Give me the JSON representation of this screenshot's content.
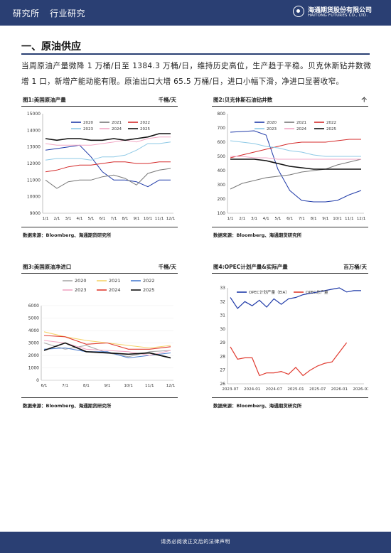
{
  "header": {
    "tab1": "研究所",
    "tab2": "行业研究",
    "logo_cn": "海通期货股份有限公司",
    "logo_en": "HAITONG FUTURES CO., LTD."
  },
  "section": {
    "title": "一、原油供应",
    "paragraph": "当周原油产量微降 1 万桶/日至 1384.3 万桶/日，维持历史高位，生产趋于平稳。贝克休斯钻井数微增 1 口，新增产能动能有限。原油出口大增 65.5 万桶/日，进口小幅下滑，净进口显著收窄。"
  },
  "figures": [
    {
      "title": "图1:美国原油产量",
      "unit": "千桶/天",
      "source": "数据来源：Bloomberg、海通期货研究所"
    },
    {
      "title": "图2:贝克休斯石油钻井数",
      "unit": "个",
      "source": "数据来源：Bloomberg、海通期货研究所"
    },
    {
      "title": "图3:美国原油净进口",
      "unit": "千桶/天",
      "source": "数据来源：Bloomberg、海通期货研究所"
    },
    {
      "title": "图4:OPEC计划产量&实际产量",
      "unit": "百万桶/天",
      "source": "数据来源：Bloomberg、海通期货研究所"
    }
  ],
  "footer": {
    "text": "请务必阅读正文后的法律声明"
  },
  "chart_data": [
    {
      "type": "line",
      "title": "图1:美国原油产量",
      "ylim": [
        9000,
        15000
      ],
      "yticks": [
        9000,
        10000,
        11000,
        12000,
        13000,
        14000,
        15000
      ],
      "xticks": [
        "1/1",
        "2/1",
        "3/1",
        "4/1",
        "5/1",
        "6/1",
        "7/1",
        "8/1",
        "9/1",
        "10/1",
        "11/1",
        "12/1"
      ],
      "series": [
        {
          "name": "2020",
          "color": "#1f3aa8",
          "values": [
            12800,
            12900,
            13000,
            13100,
            12400,
            11500,
            11000,
            11000,
            10900,
            10600,
            11000,
            11000
          ]
        },
        {
          "name": "2021",
          "color": "#777777",
          "values": [
            11000,
            10500,
            10900,
            11000,
            11000,
            11200,
            11300,
            11100,
            10700,
            11400,
            11600,
            11700
          ]
        },
        {
          "name": "2022",
          "color": "#d42a2a",
          "values": [
            11500,
            11600,
            11800,
            11900,
            11900,
            12000,
            12100,
            12100,
            12000,
            12000,
            12100,
            12100
          ]
        },
        {
          "name": "2023",
          "color": "#8ec9e6",
          "values": [
            12200,
            12300,
            12300,
            12300,
            12200,
            12400,
            12400,
            12500,
            12800,
            13200,
            13200,
            13300
          ]
        },
        {
          "name": "2024",
          "color": "#f2a6c4",
          "values": [
            13200,
            13100,
            13100,
            13100,
            13100,
            13200,
            13300,
            13400,
            13300,
            13500,
            13600,
            13600
          ]
        },
        {
          "name": "2025",
          "color": "#111111",
          "values": [
            13500,
            13400,
            13500,
            13500,
            13400,
            13400,
            13500,
            13400,
            13500,
            13600,
            13800,
            13800
          ]
        }
      ]
    },
    {
      "type": "line",
      "title": "图2:贝克休斯石油钻井数",
      "ylim": [
        100,
        800
      ],
      "yticks": [
        100,
        200,
        300,
        400,
        500,
        600,
        700,
        800
      ],
      "xticks": [
        "1/1",
        "2/1",
        "3/1",
        "4/1",
        "5/1",
        "6/1",
        "7/1",
        "8/1",
        "9/1",
        "10/1",
        "11/1",
        "12/1"
      ],
      "series": [
        {
          "name": "2020",
          "color": "#1f3aa8",
          "values": [
            670,
            675,
            680,
            650,
            410,
            260,
            190,
            180,
            180,
            190,
            230,
            260
          ]
        },
        {
          "name": "2021",
          "color": "#777777",
          "values": [
            270,
            310,
            330,
            350,
            360,
            370,
            390,
            400,
            410,
            440,
            460,
            480
          ]
        },
        {
          "name": "2022",
          "color": "#d42a2a",
          "values": [
            490,
            510,
            530,
            550,
            570,
            590,
            600,
            600,
            600,
            610,
            620,
            620
          ]
        },
        {
          "name": "2023",
          "color": "#8ec9e6",
          "values": [
            610,
            600,
            590,
            570,
            560,
            540,
            530,
            510,
            500,
            500,
            500,
            500
          ]
        },
        {
          "name": "2024",
          "color": "#f2a6c4",
          "values": [
            500,
            500,
            490,
            490,
            480,
            480,
            480,
            480,
            480,
            480,
            480,
            480
          ]
        },
        {
          "name": "2025",
          "color": "#111111",
          "values": [
            480,
            480,
            480,
            470,
            450,
            430,
            420,
            410,
            410,
            410,
            410,
            410
          ]
        }
      ]
    },
    {
      "type": "line",
      "title": "图3:美国原油净进口",
      "ylim": [
        0,
        6000
      ],
      "yticks": [
        0,
        1000,
        2000,
        3000,
        4000,
        5000,
        6000
      ],
      "xticks": [
        "6/1",
        "7/1",
        "8/1",
        "9/1",
        "10/1",
        "11/1",
        "12/1"
      ],
      "series": [
        {
          "name": "2020",
          "color": "#aaaaaa",
          "values": [
            3000,
            2500,
            2800,
            2200,
            1900,
            2300,
            2400
          ]
        },
        {
          "name": "2021",
          "color": "#f5d36b",
          "values": [
            3900,
            3500,
            3200,
            3000,
            2800,
            2600,
            2800
          ]
        },
        {
          "name": "2022",
          "color": "#4d7fd0",
          "values": [
            2500,
            2600,
            2300,
            2300,
            1800,
            2000,
            2200
          ]
        },
        {
          "name": "2023",
          "color": "#f2a6c4",
          "values": [
            3200,
            3000,
            2500,
            2400,
            2300,
            2000,
            2400
          ]
        },
        {
          "name": "2024",
          "color": "#e03a2f",
          "values": [
            3600,
            3500,
            2900,
            3000,
            2500,
            2500,
            2700
          ]
        },
        {
          "name": "2025",
          "color": "#111111",
          "values": [
            2400,
            3000,
            2300,
            2200,
            2100,
            2200,
            1800
          ]
        }
      ]
    },
    {
      "type": "line",
      "title": "图4:OPEC计划产量&实际产量",
      "ylim": [
        26,
        33
      ],
      "yticks": [
        26,
        27,
        28,
        29,
        30,
        31,
        32,
        33
      ],
      "xticks": [
        "2023-07",
        "2024-01",
        "2024-07",
        "2025-01",
        "2025-07",
        "2026-01",
        "2026-07"
      ],
      "series": [
        {
          "name": "OPEC计划产量（EIA）",
          "color": "#1f3aa8",
          "values": [
            32.3,
            31.5,
            32.0,
            31.7,
            32.1,
            31.6,
            32.2,
            31.8,
            32.2,
            32.3,
            32.5,
            32.6,
            32.7,
            32.8,
            32.9,
            33.0,
            32.7,
            32.8,
            32.8
          ]
        },
        {
          "name": "OPEC总产量",
          "color": "#e03a2f",
          "values": [
            28.7,
            27.8,
            27.9,
            27.9,
            26.6,
            26.8,
            26.8,
            26.9,
            26.7,
            27.2,
            26.6,
            27.0,
            27.3,
            27.5,
            27.6,
            28.3,
            29.0,
            null,
            null
          ]
        }
      ]
    }
  ]
}
